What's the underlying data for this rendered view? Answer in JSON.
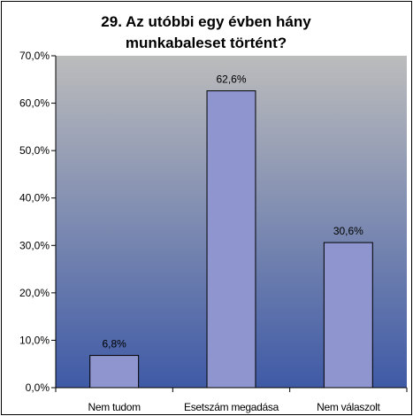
{
  "chart_data": {
    "type": "bar",
    "title_lines": [
      "29. Az utóbbi egy évben hány",
      "munkabaleset történt?"
    ],
    "categories": [
      "Nem tudom",
      "Esetszám megadása",
      "Nem válaszolt"
    ],
    "values": [
      6.8,
      62.6,
      30.6
    ],
    "value_labels": [
      "6,8%",
      "62,6%",
      "30,6%"
    ],
    "y_ticks": [
      "0,0%",
      "10,0%",
      "20,0%",
      "30,0%",
      "40,0%",
      "50,0%",
      "60,0%",
      "70,0%"
    ],
    "ylim": [
      0,
      70
    ],
    "y_step": 10,
    "grid": false,
    "legend": "none",
    "colors": {
      "bar_fill": "#8f96cf",
      "bar_stroke": "#000000",
      "plot_bg_top": "#bcbcbc",
      "plot_bg_bottom": "#3f5aa6",
      "frame": "#000000"
    }
  }
}
